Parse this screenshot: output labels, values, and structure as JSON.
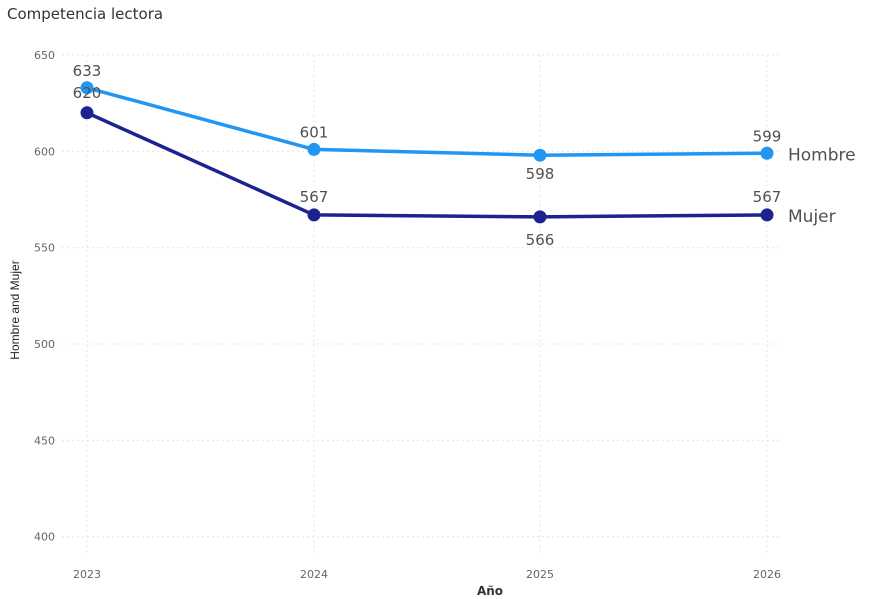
{
  "chart_data": {
    "type": "line",
    "title": "Competencia lectora",
    "xlabel": "Año",
    "ylabel": "Hombre and Mujer",
    "x": [
      "2023",
      "2024",
      "2025",
      "2026"
    ],
    "ylim": [
      390,
      650
    ],
    "yticks": [
      400,
      450,
      500,
      550,
      600,
      650
    ],
    "grid": true,
    "series": [
      {
        "name": "Hombre",
        "color": "#2196F3",
        "values": [
          633,
          601,
          598,
          599
        ]
      },
      {
        "name": "Mujer",
        "color": "#1A2390",
        "values": [
          620,
          567,
          566,
          567
        ]
      }
    ]
  }
}
